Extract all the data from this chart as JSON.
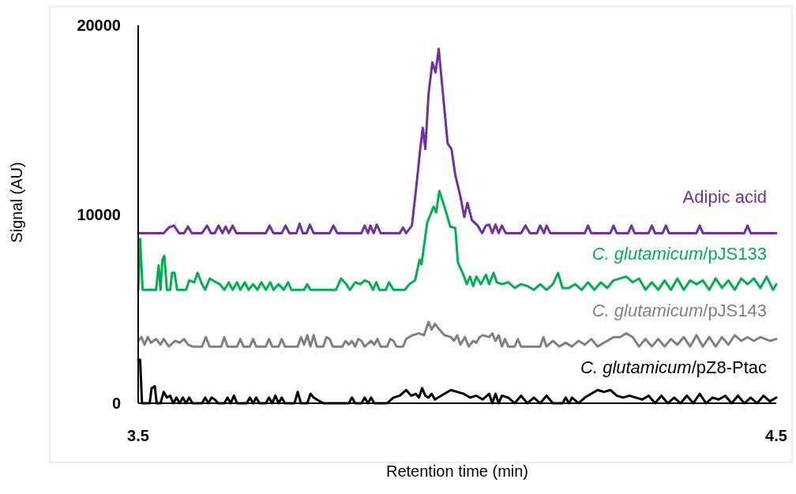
{
  "chart_data": {
    "type": "line",
    "xlabel": "Retention time (min)",
    "ylabel": "Signal (AU)",
    "xlim": [
      3.5,
      4.5
    ],
    "xticks": [
      3.5,
      4.5
    ],
    "ylim": [
      0,
      20000
    ],
    "yticks": [
      0,
      10000,
      20000
    ],
    "grid": false,
    "marker": "none",
    "line_style": "solid",
    "series": [
      {
        "name": "Adipic acid",
        "color": "#7030a0",
        "x": [
          3.5,
          3.54,
          3.548,
          3.556,
          3.564,
          3.572,
          3.578,
          3.584,
          3.6,
          3.608,
          3.614,
          3.62,
          3.626,
          3.632,
          3.637,
          3.642,
          3.648,
          3.654,
          3.7,
          3.706,
          3.712,
          3.725,
          3.731,
          3.737,
          3.748,
          3.753,
          3.758,
          3.764,
          3.769,
          3.775,
          3.8,
          3.806,
          3.812,
          3.85,
          3.855,
          3.86,
          3.864,
          3.869,
          3.874,
          3.88,
          3.91,
          3.915,
          3.92,
          3.929,
          3.936,
          3.942,
          3.946,
          3.95,
          3.955,
          3.961,
          3.966,
          3.971,
          3.978,
          3.985,
          3.991,
          3.997,
          4.005,
          4.011,
          4.016,
          4.023,
          4.032,
          4.039,
          4.045,
          4.05,
          4.055,
          4.06,
          4.065,
          4.07,
          4.076,
          4.1,
          4.107,
          4.114,
          4.125,
          4.13,
          4.136,
          4.14,
          4.146,
          4.2,
          4.205,
          4.21,
          4.24,
          4.245,
          4.25,
          4.268,
          4.273,
          4.278,
          4.3,
          4.305,
          4.31,
          4.322,
          4.327,
          4.332,
          4.375,
          4.38,
          4.385,
          4.45,
          4.455,
          4.46,
          4.5
        ],
        "values": [
          9000,
          9000,
          9300,
          9400,
          9000,
          9000,
          9350,
          9000,
          9000,
          9400,
          9000,
          9000,
          9400,
          9000,
          9350,
          9000,
          9400,
          9000,
          9000,
          9400,
          9000,
          9000,
          9400,
          9000,
          9000,
          9500,
          9000,
          9000,
          9450,
          9000,
          9000,
          9400,
          9000,
          9000,
          9400,
          9000,
          9400,
          9000,
          9450,
          9000,
          9000,
          9300,
          9000,
          9400,
          11500,
          13450,
          14570,
          13450,
          16330,
          18040,
          17500,
          18750,
          16240,
          13740,
          13450,
          12070,
          10940,
          9850,
          10600,
          9690,
          9400,
          9000,
          9400,
          9450,
          9000,
          9450,
          9000,
          9400,
          9000,
          9000,
          9400,
          9000,
          9000,
          9400,
          9000,
          9400,
          9000,
          9000,
          9400,
          9000,
          9000,
          9400,
          9000,
          9000,
          9400,
          9000,
          9000,
          9400,
          9000,
          9000,
          9400,
          9000,
          9000,
          9400,
          9000,
          9000,
          9400,
          9000,
          9000
        ]
      },
      {
        "name": "C. glutamicum/pJS133",
        "color": "#00b050",
        "x": [
          3.5,
          3.503,
          3.507,
          3.528,
          3.532,
          3.535,
          3.538,
          3.541,
          3.545,
          3.55,
          3.553,
          3.557,
          3.561,
          3.575,
          3.58,
          3.588,
          3.593,
          3.6,
          3.605,
          3.612,
          3.617,
          3.622,
          3.628,
          3.635,
          3.642,
          3.648,
          3.655,
          3.66,
          3.667,
          3.673,
          3.68,
          3.687,
          3.693,
          3.7,
          3.707,
          3.712,
          3.72,
          3.728,
          3.735,
          3.74,
          3.76,
          3.765,
          3.77,
          3.81,
          3.818,
          3.826,
          3.832,
          3.84,
          3.848,
          3.855,
          3.862,
          3.868,
          3.873,
          3.878,
          3.888,
          3.893,
          3.9,
          3.918,
          3.925,
          3.934,
          3.941,
          3.944,
          3.953,
          3.963,
          3.967,
          3.972,
          3.98,
          3.989,
          3.997,
          4.001,
          4.01,
          4.015,
          4.02,
          4.025,
          4.03,
          4.037,
          4.045,
          4.05,
          4.057,
          4.062,
          4.07,
          4.08,
          4.09,
          4.1,
          4.11,
          4.12,
          4.13,
          4.14,
          4.15,
          4.158,
          4.165,
          4.175,
          4.185,
          4.195,
          4.205,
          4.215,
          4.225,
          4.235,
          4.245,
          4.255,
          4.265,
          4.275,
          4.285,
          4.295,
          4.305,
          4.315,
          4.325,
          4.335,
          4.345,
          4.355,
          4.365,
          4.375,
          4.385,
          4.395,
          4.405,
          4.415,
          4.425,
          4.435,
          4.445,
          4.455,
          4.465,
          4.475,
          4.485,
          4.495,
          4.5
        ],
        "values": [
          6000,
          8700,
          6000,
          6000,
          7300,
          6000,
          7600,
          7800,
          6000,
          6000,
          6900,
          6900,
          6000,
          6000,
          6500,
          6400,
          6900,
          6300,
          6000,
          6600,
          6500,
          6400,
          6300,
          6000,
          6400,
          6000,
          6400,
          6000,
          6400,
          6000,
          6300,
          6000,
          6400,
          6000,
          6400,
          6000,
          6300,
          6000,
          6400,
          6000,
          6000,
          6300,
          6000,
          6000,
          6600,
          6300,
          6000,
          6400,
          6300,
          6500,
          6400,
          6000,
          6400,
          6000,
          6000,
          6400,
          6000,
          6000,
          6300,
          6510,
          7600,
          7350,
          9560,
          10400,
          10100,
          11230,
          10400,
          9350,
          9270,
          7470,
          6760,
          6300,
          6700,
          6200,
          6700,
          6300,
          6800,
          6300,
          6900,
          6400,
          6300,
          6400,
          6100,
          6300,
          6200,
          6000,
          6300,
          6000,
          6300,
          6900,
          6100,
          6100,
          6300,
          6000,
          6400,
          6000,
          6400,
          6100,
          6500,
          6600,
          6700,
          6400,
          6600,
          6000,
          6400,
          6000,
          6500,
          6000,
          6600,
          6000,
          6500,
          6300,
          6500,
          6000,
          6600,
          6100,
          6500,
          6000,
          6600,
          6300,
          6600,
          6100,
          6700,
          6000,
          6300
        ]
      },
      {
        "name": "C. glutamicum/pJS143",
        "color": "#808080",
        "x": [
          3.5,
          3.505,
          3.51,
          3.515,
          3.52,
          3.528,
          3.535,
          3.54,
          3.548,
          3.558,
          3.565,
          3.572,
          3.578,
          3.585,
          3.6,
          3.606,
          3.612,
          3.63,
          3.635,
          3.64,
          3.655,
          3.66,
          3.665,
          3.675,
          3.68,
          3.685,
          3.7,
          3.705,
          3.71,
          3.72,
          3.725,
          3.73,
          3.75,
          3.755,
          3.76,
          3.765,
          3.77,
          3.775,
          3.78,
          3.79,
          3.795,
          3.8,
          3.805,
          3.82,
          3.825,
          3.83,
          3.835,
          3.84,
          3.845,
          3.85,
          3.855,
          3.865,
          3.87,
          3.875,
          3.88,
          3.89,
          3.895,
          3.9,
          3.905,
          3.915,
          3.92,
          3.93,
          3.94,
          3.948,
          3.955,
          3.96,
          3.965,
          3.972,
          3.98,
          3.99,
          3.995,
          4.0,
          4.005,
          4.012,
          4.018,
          4.025,
          4.03,
          4.035,
          4.04,
          4.05,
          4.055,
          4.06,
          4.065,
          4.07,
          4.075,
          4.08,
          4.09,
          4.095,
          4.1,
          4.13,
          4.135,
          4.14,
          4.15,
          4.16,
          4.17,
          4.18,
          4.19,
          4.2,
          4.21,
          4.22,
          4.235,
          4.245,
          4.255,
          4.265,
          4.275,
          4.285,
          4.295,
          4.305,
          4.315,
          4.325,
          4.335,
          4.345,
          4.355,
          4.365,
          4.375,
          4.385,
          4.395,
          4.405,
          4.415,
          4.425,
          4.435,
          4.445,
          4.455,
          4.465,
          4.475,
          4.49,
          4.5
        ],
        "values": [
          3300,
          3500,
          3100,
          3500,
          3200,
          3400,
          3100,
          3400,
          3000,
          3300,
          3200,
          3400,
          3100,
          3000,
          3000,
          3500,
          3000,
          3000,
          3500,
          3000,
          3000,
          3400,
          3000,
          3000,
          3400,
          3000,
          3000,
          3400,
          3000,
          3000,
          3400,
          3000,
          3000,
          3500,
          3100,
          3600,
          3000,
          3600,
          3000,
          3000,
          3500,
          3400,
          3000,
          3000,
          3300,
          3100,
          3300,
          3000,
          3400,
          3300,
          3000,
          3300,
          3100,
          3400,
          3000,
          3000,
          3400,
          3300,
          3000,
          3000,
          3400,
          3600,
          3700,
          3600,
          4300,
          3900,
          4200,
          3900,
          3600,
          3500,
          3300,
          3600,
          3100,
          3500,
          3000,
          3300,
          3200,
          3500,
          3600,
          3500,
          3700,
          3300,
          3600,
          3000,
          3400,
          3000,
          3000,
          3400,
          3000,
          3000,
          3500,
          3000,
          3300,
          3000,
          3200,
          3000,
          3300,
          3100,
          3400,
          3000,
          3300,
          3500,
          3500,
          3700,
          3500,
          3000,
          3400,
          3000,
          3400,
          3000,
          3400,
          3100,
          3500,
          3000,
          3600,
          3000,
          3500,
          3000,
          3500,
          3100,
          3600,
          3300,
          3500,
          3300,
          3500,
          3300,
          3400
        ]
      },
      {
        "name": "C. glutamicum/pZ8-Ptac",
        "color": "#000000",
        "x": [
          3.5,
          3.503,
          3.506,
          3.518,
          3.521,
          3.526,
          3.529,
          3.535,
          3.54,
          3.545,
          3.55,
          3.555,
          3.56,
          3.565,
          3.57,
          3.575,
          3.58,
          3.585,
          3.6,
          3.605,
          3.61,
          3.615,
          3.62,
          3.625,
          3.635,
          3.64,
          3.645,
          3.65,
          3.655,
          3.67,
          3.675,
          3.68,
          3.685,
          3.69,
          3.7,
          3.705,
          3.71,
          3.715,
          3.72,
          3.725,
          3.73,
          3.745,
          3.75,
          3.755,
          3.765,
          3.77,
          3.775,
          3.78,
          3.79,
          3.83,
          3.835,
          3.84,
          3.85,
          3.855,
          3.86,
          3.865,
          3.87,
          3.89,
          3.9,
          3.91,
          3.92,
          3.928,
          3.935,
          3.94,
          3.945,
          3.95,
          3.955,
          3.96,
          3.965,
          3.97,
          3.98,
          3.99,
          4.0,
          4.01,
          4.02,
          4.03,
          4.04,
          4.05,
          4.055,
          4.06,
          4.065,
          4.07,
          4.08,
          4.09,
          4.1,
          4.11,
          4.12,
          4.13,
          4.14,
          4.15,
          4.165,
          4.17,
          4.175,
          4.18,
          4.19,
          4.2,
          4.21,
          4.22,
          4.23,
          4.24,
          4.25,
          4.26,
          4.27,
          4.28,
          4.29,
          4.3,
          4.31,
          4.32,
          4.33,
          4.34,
          4.35,
          4.36,
          4.37,
          4.38,
          4.39,
          4.4,
          4.41,
          4.42,
          4.43,
          4.44,
          4.45,
          4.46,
          4.47,
          4.48,
          4.49,
          4.5
        ],
        "values": [
          2300,
          2300,
          0,
          0,
          800,
          900,
          0,
          0,
          600,
          300,
          400,
          0,
          300,
          0,
          300,
          0,
          300,
          0,
          0,
          300,
          0,
          300,
          200,
          0,
          0,
          300,
          0,
          400,
          0,
          0,
          300,
          0,
          300,
          0,
          0,
          300,
          0,
          400,
          0,
          300,
          0,
          0,
          600,
          0,
          0,
          500,
          300,
          200,
          0,
          0,
          300,
          0,
          0,
          300,
          0,
          300,
          0,
          0,
          300,
          400,
          700,
          400,
          500,
          300,
          800,
          400,
          300,
          500,
          200,
          300,
          500,
          700,
          600,
          500,
          300,
          400,
          200,
          500,
          0,
          500,
          0,
          400,
          300,
          0,
          400,
          0,
          300,
          0,
          400,
          0,
          0,
          300,
          0,
          300,
          0,
          300,
          500,
          700,
          600,
          700,
          400,
          300,
          400,
          300,
          200,
          400,
          0,
          400,
          0,
          300,
          0,
          400,
          0,
          500,
          0,
          300,
          200,
          400,
          0,
          400,
          0,
          300,
          0,
          400,
          100,
          300
        ]
      }
    ]
  }
}
